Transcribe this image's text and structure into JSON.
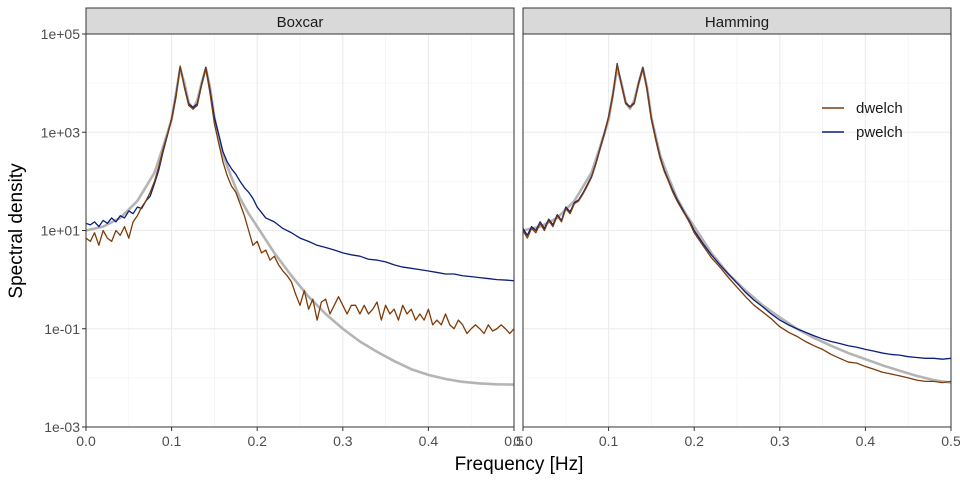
{
  "chart_data": {
    "type": "line",
    "xlabel": "Frequency [Hz]",
    "ylabel": "Spectral density",
    "y_scale": "log10",
    "xlim": [
      0,
      0.5
    ],
    "ylim": [
      0.001,
      100000
    ],
    "x_ticks": [
      0.0,
      0.1,
      0.2,
      0.3,
      0.4,
      0.5
    ],
    "x_tick_labels": [
      "0.0",
      "0.1",
      "0.2",
      "0.3",
      "0.4",
      "0.5"
    ],
    "y_ticks": [
      0.001,
      0.1,
      10,
      1000,
      100000
    ],
    "y_tick_labels": [
      "1e-03",
      "1e-01",
      "1e+01",
      "1e+03",
      "1e+05"
    ],
    "grid": true,
    "legend": {
      "placement": "top-right",
      "entries": [
        {
          "name": "dwelch",
          "color": "#7f3b08"
        },
        {
          "name": "pwelch",
          "color": "#0b1f7a"
        }
      ]
    },
    "reference_line_color": "#b4b4b4",
    "panels": [
      {
        "strip": "Boxcar",
        "reference": {
          "x": [
            0,
            0.02,
            0.04,
            0.06,
            0.08,
            0.09,
            0.1,
            0.105,
            0.11,
            0.115,
            0.12,
            0.125,
            0.13,
            0.135,
            0.14,
            0.145,
            0.15,
            0.16,
            0.17,
            0.18,
            0.19,
            0.2,
            0.22,
            0.24,
            0.26,
            0.28,
            0.3,
            0.32,
            0.34,
            0.36,
            0.38,
            0.4,
            0.42,
            0.44,
            0.46,
            0.48,
            0.5
          ],
          "y": [
            10,
            12,
            18,
            40,
            150,
            500,
            1800,
            6000,
            20000,
            10000,
            4000,
            3000,
            4500,
            10000,
            20000,
            8000,
            2000,
            350,
            120,
            45,
            22,
            12,
            3.5,
            1.2,
            0.45,
            0.2,
            0.1,
            0.055,
            0.034,
            0.022,
            0.015,
            0.0115,
            0.0095,
            0.0083,
            0.0077,
            0.0074,
            0.0073
          ]
        },
        "series": [
          {
            "name": "dwelch",
            "x": [
              0,
              0.005,
              0.01,
              0.015,
              0.02,
              0.025,
              0.03,
              0.035,
              0.04,
              0.045,
              0.05,
              0.055,
              0.06,
              0.065,
              0.07,
              0.075,
              0.08,
              0.085,
              0.09,
              0.095,
              0.1,
              0.105,
              0.11,
              0.115,
              0.12,
              0.125,
              0.13,
              0.135,
              0.14,
              0.145,
              0.15,
              0.155,
              0.16,
              0.165,
              0.17,
              0.175,
              0.18,
              0.185,
              0.19,
              0.195,
              0.2,
              0.205,
              0.21,
              0.215,
              0.22,
              0.225,
              0.23,
              0.235,
              0.24,
              0.245,
              0.25,
              0.255,
              0.26,
              0.265,
              0.27,
              0.275,
              0.28,
              0.285,
              0.29,
              0.295,
              0.3,
              0.305,
              0.31,
              0.315,
              0.32,
              0.325,
              0.33,
              0.335,
              0.34,
              0.345,
              0.35,
              0.355,
              0.36,
              0.365,
              0.37,
              0.375,
              0.38,
              0.385,
              0.39,
              0.395,
              0.4,
              0.405,
              0.41,
              0.415,
              0.42,
              0.425,
              0.43,
              0.435,
              0.44,
              0.445,
              0.45,
              0.455,
              0.46,
              0.465,
              0.47,
              0.475,
              0.48,
              0.485,
              0.49,
              0.495,
              0.5
            ],
            "y": [
              7,
              6,
              9,
              5,
              10,
              7,
              6,
              10,
              8,
              12,
              7,
              15,
              20,
              30,
              40,
              60,
              100,
              200,
              450,
              900,
              1800,
              5000,
              22000,
              8000,
              3500,
              3000,
              3500,
              9000,
              20000,
              6000,
              1500,
              600,
              250,
              130,
              80,
              60,
              35,
              20,
              10,
              5,
              6,
              3.5,
              4,
              2.5,
              3,
              2,
              1.5,
              1.2,
              0.9,
              0.5,
              0.3,
              0.6,
              0.25,
              0.4,
              0.15,
              0.35,
              0.4,
              0.2,
              0.3,
              0.45,
              0.3,
              0.2,
              0.3,
              0.3,
              0.2,
              0.3,
              0.2,
              0.25,
              0.35,
              0.15,
              0.3,
              0.2,
              0.25,
              0.15,
              0.3,
              0.2,
              0.25,
              0.15,
              0.2,
              0.15,
              0.25,
              0.12,
              0.15,
              0.12,
              0.2,
              0.12,
              0.1,
              0.15,
              0.12,
              0.08,
              0.1,
              0.12,
              0.1,
              0.08,
              0.12,
              0.09,
              0.1,
              0.12,
              0.1,
              0.08,
              0.1
            ]
          },
          {
            "name": "pwelch",
            "x": [
              0,
              0.005,
              0.01,
              0.015,
              0.02,
              0.025,
              0.03,
              0.035,
              0.04,
              0.045,
              0.05,
              0.055,
              0.06,
              0.065,
              0.07,
              0.075,
              0.08,
              0.085,
              0.09,
              0.095,
              0.1,
              0.105,
              0.11,
              0.115,
              0.12,
              0.125,
              0.13,
              0.135,
              0.14,
              0.145,
              0.15,
              0.155,
              0.16,
              0.165,
              0.17,
              0.175,
              0.18,
              0.185,
              0.19,
              0.195,
              0.2,
              0.21,
              0.22,
              0.23,
              0.24,
              0.25,
              0.26,
              0.27,
              0.28,
              0.29,
              0.3,
              0.31,
              0.32,
              0.33,
              0.34,
              0.35,
              0.36,
              0.37,
              0.38,
              0.39,
              0.4,
              0.41,
              0.42,
              0.43,
              0.44,
              0.45,
              0.46,
              0.47,
              0.48,
              0.49,
              0.5
            ],
            "y": [
              14,
              13,
              15,
              12,
              16,
              14,
              18,
              15,
              20,
              18,
              25,
              22,
              30,
              28,
              40,
              50,
              90,
              170,
              400,
              850,
              1900,
              5500,
              22000,
              8500,
              3800,
              3200,
              3800,
              9500,
              21000,
              7000,
              2000,
              900,
              400,
              250,
              180,
              140,
              100,
              75,
              60,
              45,
              30,
              18,
              15,
              11,
              9,
              7,
              6,
              5,
              4.5,
              4,
              3.5,
              3.2,
              3,
              2.6,
              2.5,
              2.3,
              2,
              1.8,
              1.7,
              1.6,
              1.5,
              1.4,
              1.3,
              1.3,
              1.2,
              1.15,
              1.1,
              1.05,
              1.0,
              0.98,
              0.95
            ]
          }
        ]
      },
      {
        "strip": "Hamming",
        "reference": {
          "x": [
            0,
            0.02,
            0.04,
            0.06,
            0.08,
            0.09,
            0.1,
            0.105,
            0.11,
            0.115,
            0.12,
            0.125,
            0.13,
            0.135,
            0.14,
            0.145,
            0.15,
            0.16,
            0.17,
            0.18,
            0.19,
            0.2,
            0.22,
            0.24,
            0.26,
            0.28,
            0.3,
            0.32,
            0.34,
            0.36,
            0.38,
            0.4,
            0.42,
            0.44,
            0.46,
            0.48,
            0.5
          ],
          "y": [
            10,
            12,
            18,
            40,
            150,
            500,
            1800,
            6000,
            20000,
            10000,
            4000,
            3000,
            4500,
            10000,
            20000,
            8000,
            2000,
            350,
            120,
            45,
            22,
            12,
            3.5,
            1.3,
            0.6,
            0.3,
            0.17,
            0.1,
            0.065,
            0.045,
            0.032,
            0.024,
            0.018,
            0.014,
            0.011,
            0.009,
            0.008
          ]
        },
        "series": [
          {
            "name": "dwelch",
            "x": [
              0,
              0.005,
              0.01,
              0.015,
              0.02,
              0.025,
              0.03,
              0.035,
              0.04,
              0.045,
              0.05,
              0.055,
              0.06,
              0.065,
              0.07,
              0.075,
              0.08,
              0.085,
              0.09,
              0.095,
              0.1,
              0.105,
              0.11,
              0.115,
              0.12,
              0.125,
              0.13,
              0.135,
              0.14,
              0.145,
              0.15,
              0.155,
              0.16,
              0.165,
              0.17,
              0.175,
              0.18,
              0.185,
              0.19,
              0.195,
              0.2,
              0.21,
              0.22,
              0.23,
              0.24,
              0.25,
              0.26,
              0.27,
              0.28,
              0.29,
              0.3,
              0.31,
              0.32,
              0.33,
              0.34,
              0.35,
              0.36,
              0.37,
              0.38,
              0.39,
              0.4,
              0.41,
              0.42,
              0.43,
              0.44,
              0.45,
              0.46,
              0.47,
              0.48,
              0.49,
              0.5
            ],
            "y": [
              10,
              7,
              11,
              9,
              14,
              10,
              16,
              12,
              20,
              15,
              28,
              22,
              35,
              40,
              55,
              80,
              120,
              220,
              450,
              900,
              2000,
              5500,
              24000,
              9000,
              3800,
              3200,
              3800,
              9500,
              20000,
              7000,
              1800,
              700,
              300,
              160,
              100,
              60,
              40,
              28,
              20,
              14,
              9,
              5,
              2.8,
              1.8,
              1.1,
              0.7,
              0.45,
              0.3,
              0.22,
              0.16,
              0.11,
              0.085,
              0.07,
              0.055,
              0.045,
              0.038,
              0.03,
              0.025,
              0.021,
              0.02,
              0.017,
              0.015,
              0.013,
              0.012,
              0.011,
              0.01,
              0.009,
              0.0085,
              0.0085,
              0.008,
              0.0085
            ]
          },
          {
            "name": "pwelch",
            "x": [
              0,
              0.005,
              0.01,
              0.015,
              0.02,
              0.025,
              0.03,
              0.035,
              0.04,
              0.045,
              0.05,
              0.055,
              0.06,
              0.065,
              0.07,
              0.075,
              0.08,
              0.085,
              0.09,
              0.095,
              0.1,
              0.105,
              0.11,
              0.115,
              0.12,
              0.125,
              0.13,
              0.135,
              0.14,
              0.145,
              0.15,
              0.155,
              0.16,
              0.165,
              0.17,
              0.175,
              0.18,
              0.185,
              0.19,
              0.195,
              0.2,
              0.21,
              0.22,
              0.23,
              0.24,
              0.25,
              0.26,
              0.27,
              0.28,
              0.29,
              0.3,
              0.31,
              0.32,
              0.33,
              0.34,
              0.35,
              0.36,
              0.37,
              0.38,
              0.39,
              0.4,
              0.41,
              0.42,
              0.43,
              0.44,
              0.45,
              0.46,
              0.47,
              0.48,
              0.49,
              0.5
            ],
            "y": [
              11,
              8,
              12,
              10,
              15,
              11,
              17,
              13,
              21,
              16,
              30,
              24,
              37,
              42,
              58,
              85,
              125,
              230,
              470,
              950,
              2100,
              5800,
              25000,
              9500,
              4000,
              3300,
              4000,
              10000,
              21000,
              7500,
              1900,
              750,
              320,
              170,
              105,
              65,
              43,
              30,
              21,
              15,
              10,
              5.5,
              3.2,
              2.0,
              1.3,
              0.85,
              0.55,
              0.38,
              0.28,
              0.2,
              0.15,
              0.12,
              0.1,
              0.085,
              0.072,
              0.062,
              0.055,
              0.05,
              0.045,
              0.042,
              0.038,
              0.035,
              0.032,
              0.03,
              0.029,
              0.027,
              0.026,
              0.025,
              0.025,
              0.024,
              0.025
            ]
          }
        ]
      }
    ]
  }
}
